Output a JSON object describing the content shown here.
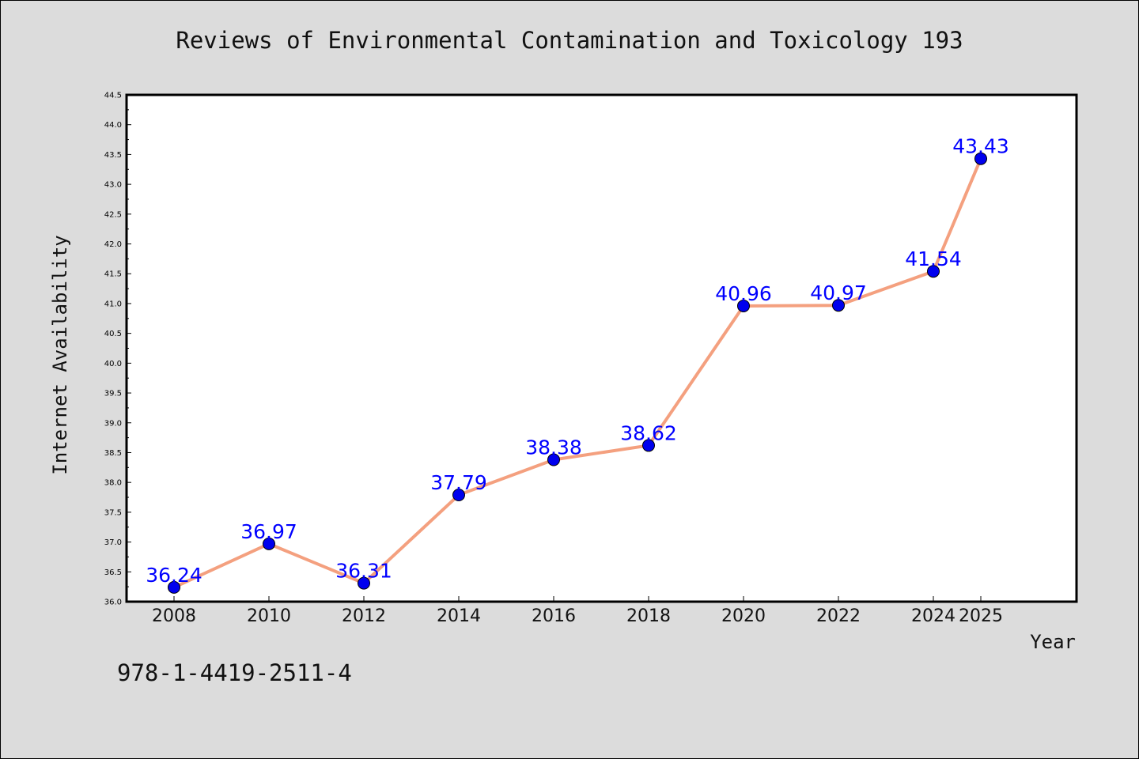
{
  "colors": {
    "background": "#dcdcdc",
    "plot_background": "#ffffff",
    "line": "#f4a07f",
    "marker": "#0000ee",
    "data_label": "#0000ff"
  },
  "footer": {
    "isbn": "978-1-4419-2511-4"
  },
  "chart_data": {
    "type": "line",
    "title": "Reviews of Environmental Contamination and Toxicology 193",
    "xlabel": "Year",
    "ylabel": "Internet Availability",
    "categories": [
      "2008",
      "2010",
      "2012",
      "2014",
      "2016",
      "2018",
      "2020",
      "2022",
      "2024",
      "2025"
    ],
    "series": [
      {
        "values": [
          36.24,
          36.97,
          36.31,
          37.79,
          38.38,
          38.62,
          40.96,
          40.97,
          41.54,
          43.43
        ]
      }
    ],
    "data_labels": [
      "36.24",
      "36.97",
      "36.31",
      "37.79",
      "38.38",
      "38.62",
      "40.96",
      "40.97",
      "41.54",
      "43.43"
    ],
    "ylim": [
      36.0,
      44.5
    ],
    "yticks": [
      "36.0",
      "36.5",
      "37.0",
      "37.5",
      "38.0",
      "38.5",
      "39.0",
      "39.5",
      "40.0",
      "40.5",
      "41.0",
      "41.5",
      "42.0",
      "42.5",
      "43.0",
      "43.5",
      "44.0",
      "44.5"
    ],
    "grid": false,
    "legend": "none"
  }
}
